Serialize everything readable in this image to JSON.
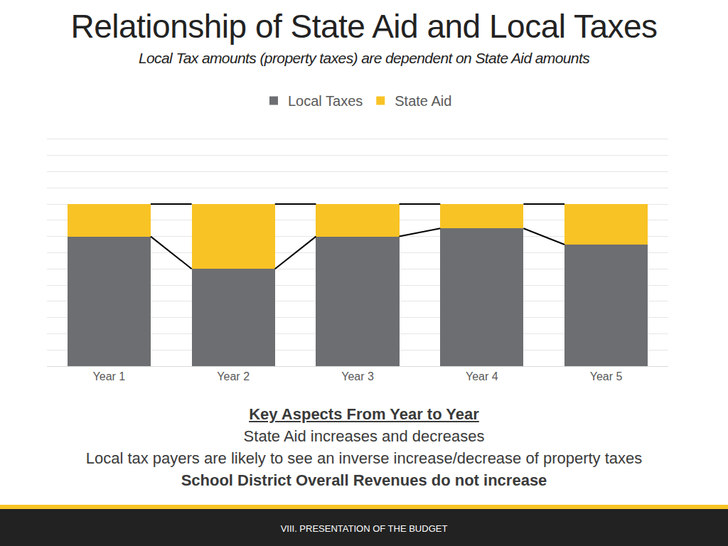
{
  "chart_data": {
    "type": "bar",
    "title": "Relationship of State Aid and Local Taxes",
    "subtitle": "Local Tax amounts (property taxes) are dependent on State Aid amounts",
    "categories": [
      "Year 1",
      "Year 2",
      "Year 3",
      "Year 4",
      "Year 5"
    ],
    "series": [
      {
        "name": "Local Taxes",
        "color": "#6d6e71",
        "values": [
          8,
          6,
          8,
          8.5,
          7.5
        ]
      },
      {
        "name": "State Aid",
        "color": "#f8c325",
        "values": [
          2,
          4,
          2,
          1.5,
          2.5
        ]
      }
    ],
    "stacked": true,
    "ylim": [
      0,
      15
    ],
    "yticks": [
      0,
      1,
      2,
      3,
      4,
      5,
      6,
      7,
      8,
      9,
      10,
      11,
      12,
      13,
      14,
      15
    ],
    "grid": true,
    "tick_labels": "x",
    "legend": "top"
  },
  "key_aspects": {
    "heading": "Key Aspects From Year to Year",
    "lines": [
      "State Aid increases and decreases",
      "Local tax payers are likely to see an inverse increase/decrease of property taxes"
    ],
    "emphasis": "School District Overall Revenues do not increase"
  },
  "footer": "VIII. PRESENTATION OF THE BUDGET"
}
